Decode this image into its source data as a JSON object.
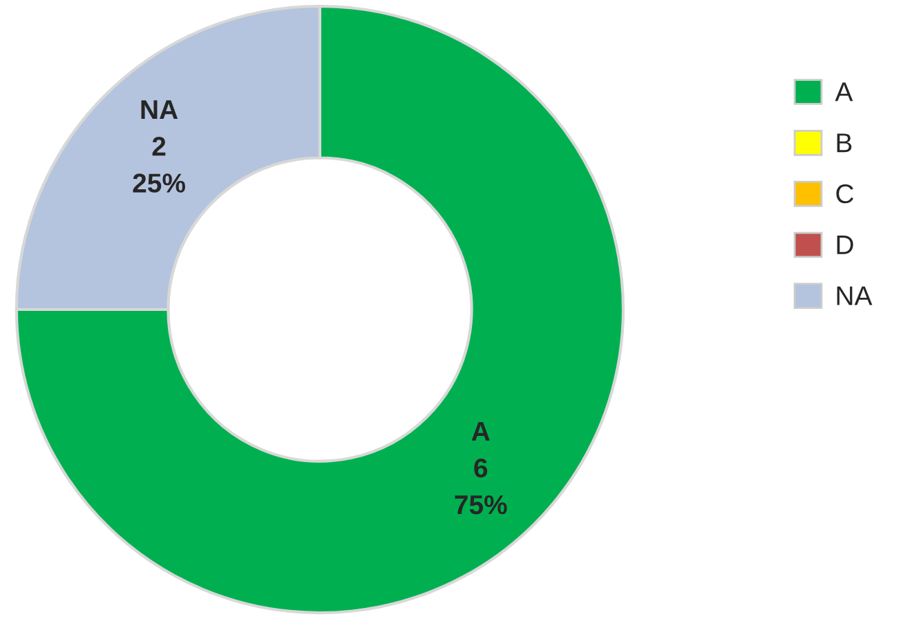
{
  "chart_data": {
    "type": "donut",
    "categories": [
      "A",
      "B",
      "C",
      "D",
      "NA"
    ],
    "values": [
      6,
      0,
      0,
      0,
      2
    ],
    "colors": [
      "#00b050",
      "#ffff00",
      "#ffc000",
      "#c0504d",
      "#b4c4de"
    ],
    "value_labels": [
      "A\n6\n75%",
      null,
      null,
      null,
      "NA\n2\n25%"
    ],
    "legend": "top right"
  }
}
